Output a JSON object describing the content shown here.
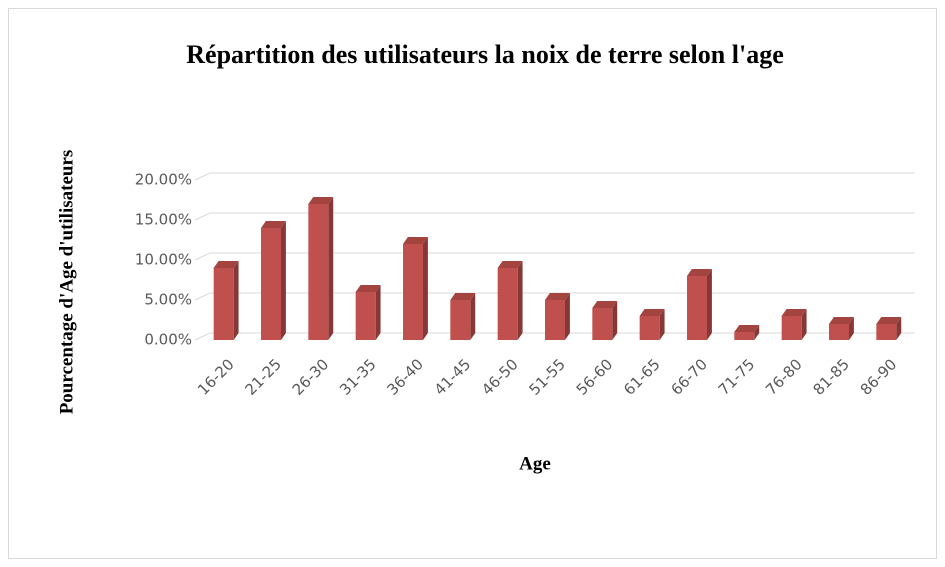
{
  "chart_data": {
    "type": "bar3d",
    "title": "Répartition des utilisateurs la noix de terre selon l'age",
    "xlabel": "Age",
    "ylabel": "Pourcentage d'Age d'utilisateurs",
    "categories": [
      "16-20",
      "21-25",
      "26-30",
      "31-35",
      "36-40",
      "41-45",
      "46-50",
      "51-55",
      "56-60",
      "61-65",
      "66-70",
      "71-75",
      "76-80",
      "81-85",
      "86-90"
    ],
    "values": [
      9,
      14,
      17,
      6,
      12,
      5,
      9,
      5,
      4,
      3,
      8,
      1,
      3,
      2,
      2
    ],
    "color": "#c0504d",
    "ylim": [
      0,
      20
    ],
    "yticks": [
      {
        "value": 0,
        "label": "0.00%"
      },
      {
        "value": 5,
        "label": "5.00%"
      },
      {
        "value": 10,
        "label": "10.00%"
      },
      {
        "value": 15,
        "label": "15.00%"
      },
      {
        "value": 20,
        "label": "20.00%"
      }
    ],
    "grid": true
  }
}
